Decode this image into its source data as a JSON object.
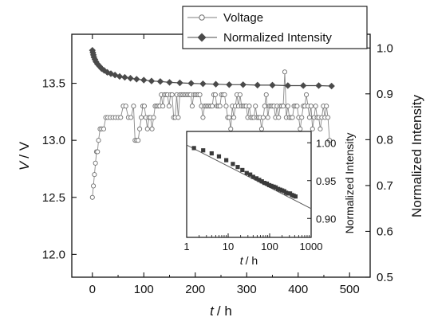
{
  "chart_data": [
    {
      "type": "line",
      "xlabel_italic": "t",
      "xlabel_unit": "/ h",
      "ylabel_left_italic": "V",
      "ylabel_left_unit": "/ V",
      "ylabel_right": "Normalized Intensity",
      "xlim": [
        -40,
        540
      ],
      "ylim_left": [
        11.8,
        13.93
      ],
      "ylim_right": [
        0.5,
        1.03
      ],
      "x_ticks": [
        "0",
        "100",
        "200",
        "300",
        "400",
        "500"
      ],
      "y_left_ticks": [
        "12.0",
        "12.5",
        "13.0",
        "13.5"
      ],
      "y_right_ticks": [
        "0.5",
        "0.6",
        "0.7",
        "0.8",
        "0.9",
        "1.0"
      ],
      "legend_position": "top-right",
      "series": [
        {
          "name": "Voltage",
          "axis": "left",
          "marker": "open-circle",
          "color": "#7f7f7f",
          "x": [
            0,
            2,
            4,
            6,
            8,
            10,
            12,
            15,
            18,
            22,
            26,
            30,
            35,
            40,
            45,
            50,
            55,
            60,
            65,
            70,
            75,
            80,
            83,
            86,
            89,
            92,
            95,
            98,
            101,
            104,
            107,
            110,
            113,
            116,
            119,
            122,
            125,
            128,
            131,
            134,
            137,
            140,
            143,
            146,
            149,
            152,
            155,
            158,
            161,
            164,
            167,
            170,
            173,
            176,
            179,
            182,
            185,
            188,
            191,
            194,
            197,
            200,
            203,
            206,
            209,
            212,
            215,
            218,
            221,
            224,
            227,
            230,
            233,
            236,
            239,
            242,
            245,
            248,
            251,
            254,
            257,
            260,
            263,
            266,
            269,
            272,
            275,
            278,
            281,
            284,
            287,
            290,
            293,
            296,
            299,
            302,
            305,
            308,
            311,
            314,
            317,
            320,
            323,
            326,
            329,
            332,
            335,
            338,
            341,
            344,
            347,
            350,
            353,
            356,
            359,
            362,
            365,
            368,
            371,
            374,
            377,
            380,
            383,
            386,
            389,
            392,
            395,
            398,
            401,
            404,
            407,
            410,
            413,
            416,
            419,
            422,
            425,
            428,
            431,
            434,
            437,
            440,
            443,
            446,
            449,
            452,
            455,
            458,
            461
          ],
          "values": [
            12.5,
            12.6,
            12.7,
            12.8,
            12.9,
            12.9,
            13.0,
            13.1,
            13.1,
            13.1,
            13.2,
            13.2,
            13.2,
            13.2,
            13.2,
            13.2,
            13.2,
            13.3,
            13.3,
            13.2,
            13.2,
            13.3,
            13.0,
            13.0,
            13.0,
            13.1,
            13.2,
            13.3,
            13.3,
            13.2,
            13.1,
            13.2,
            13.2,
            13.1,
            13.2,
            13.3,
            13.3,
            13.3,
            13.3,
            13.4,
            13.3,
            13.4,
            13.4,
            13.4,
            13.3,
            13.4,
            13.4,
            13.2,
            13.2,
            13.4,
            13.2,
            13.4,
            13.4,
            13.4,
            13.4,
            13.4,
            13.4,
            13.4,
            13.4,
            13.3,
            13.4,
            13.4,
            13.4,
            13.4,
            13.4,
            13.3,
            13.2,
            13.3,
            13.3,
            13.3,
            13.3,
            13.3,
            13.3,
            13.4,
            13.4,
            13.3,
            13.3,
            13.3,
            13.4,
            13.4,
            13.4,
            13.3,
            13.2,
            13.2,
            13.1,
            13.3,
            13.2,
            13.3,
            13.4,
            13.3,
            13.4,
            13.3,
            13.3,
            13.3,
            13.3,
            13.2,
            13.3,
            13.2,
            13.2,
            13.2,
            13.3,
            13.2,
            13.2,
            13.2,
            13.1,
            13.2,
            13.3,
            13.4,
            13.2,
            13.3,
            13.3,
            13.3,
            13.3,
            13.2,
            13.3,
            13.2,
            13.3,
            13.3,
            13.3,
            13.6,
            13.2,
            13.3,
            13.2,
            13.2,
            13.2,
            13.3,
            13.3,
            13.3,
            13.2,
            13.1,
            13.2,
            13.3,
            13.3,
            13.4,
            13.3,
            13.2,
            13.3,
            13.1,
            13.2,
            13.3,
            13.2,
            13.2,
            13.1,
            13.2,
            13.3,
            13.2,
            13.3,
            13.2,
            13.0
          ]
        },
        {
          "name": "Normalized Intensity",
          "axis": "right",
          "marker": "filled-diamond",
          "color": "#4a4a4a",
          "x": [
            0,
            1,
            2,
            3,
            5,
            7,
            10,
            14,
            18,
            23,
            29,
            36,
            44,
            53,
            63,
            74,
            86,
            100,
            115,
            132,
            150,
            170,
            192,
            215,
            240,
            266,
            293,
            321,
            350,
            380,
            410,
            440,
            465
          ],
          "values": [
            0.995,
            0.99,
            0.985,
            0.98,
            0.975,
            0.97,
            0.965,
            0.96,
            0.955,
            0.951,
            0.947,
            0.944,
            0.941,
            0.938,
            0.936,
            0.934,
            0.932,
            0.93,
            0.928,
            0.927,
            0.925,
            0.924,
            0.923,
            0.922,
            0.921,
            0.92,
            0.92,
            0.919,
            0.919,
            0.918,
            0.918,
            0.918,
            0.917
          ]
        }
      ]
    },
    {
      "type": "scatter",
      "xscale": "log",
      "xlabel_italic": "t",
      "xlabel_unit": "/ h",
      "ylabel": "Normalized Intensity",
      "xlim": [
        1,
        1000
      ],
      "ylim": [
        0.875,
        1.015
      ],
      "x_ticks": [
        "1",
        "10",
        "100",
        "1000"
      ],
      "y_ticks": [
        "0.90",
        "0.95",
        "1.00"
      ],
      "series": [
        {
          "marker": "filled-square",
          "color": "#3a3a3a",
          "x": [
            1.5,
            2.5,
            4,
            6,
            9,
            13,
            17,
            22,
            28,
            34,
            40,
            48,
            56,
            65,
            75,
            86,
            98,
            110,
            125,
            140,
            160,
            180,
            200,
            225,
            250,
            280,
            310,
            345,
            380,
            420
          ],
          "values": [
            0.993,
            0.99,
            0.986,
            0.982,
            0.977,
            0.972,
            0.968,
            0.964,
            0.96,
            0.958,
            0.955,
            0.953,
            0.951,
            0.949,
            0.947,
            0.946,
            0.944,
            0.943,
            0.942,
            0.941,
            0.939,
            0.938,
            0.937,
            0.936,
            0.934,
            0.933,
            0.933,
            0.931,
            0.93,
            0.929
          ]
        },
        {
          "marker": "fit-line",
          "color": "#5a5a5a",
          "x": [
            1,
            1000
          ],
          "values": [
            0.997,
            0.913
          ]
        }
      ]
    }
  ]
}
